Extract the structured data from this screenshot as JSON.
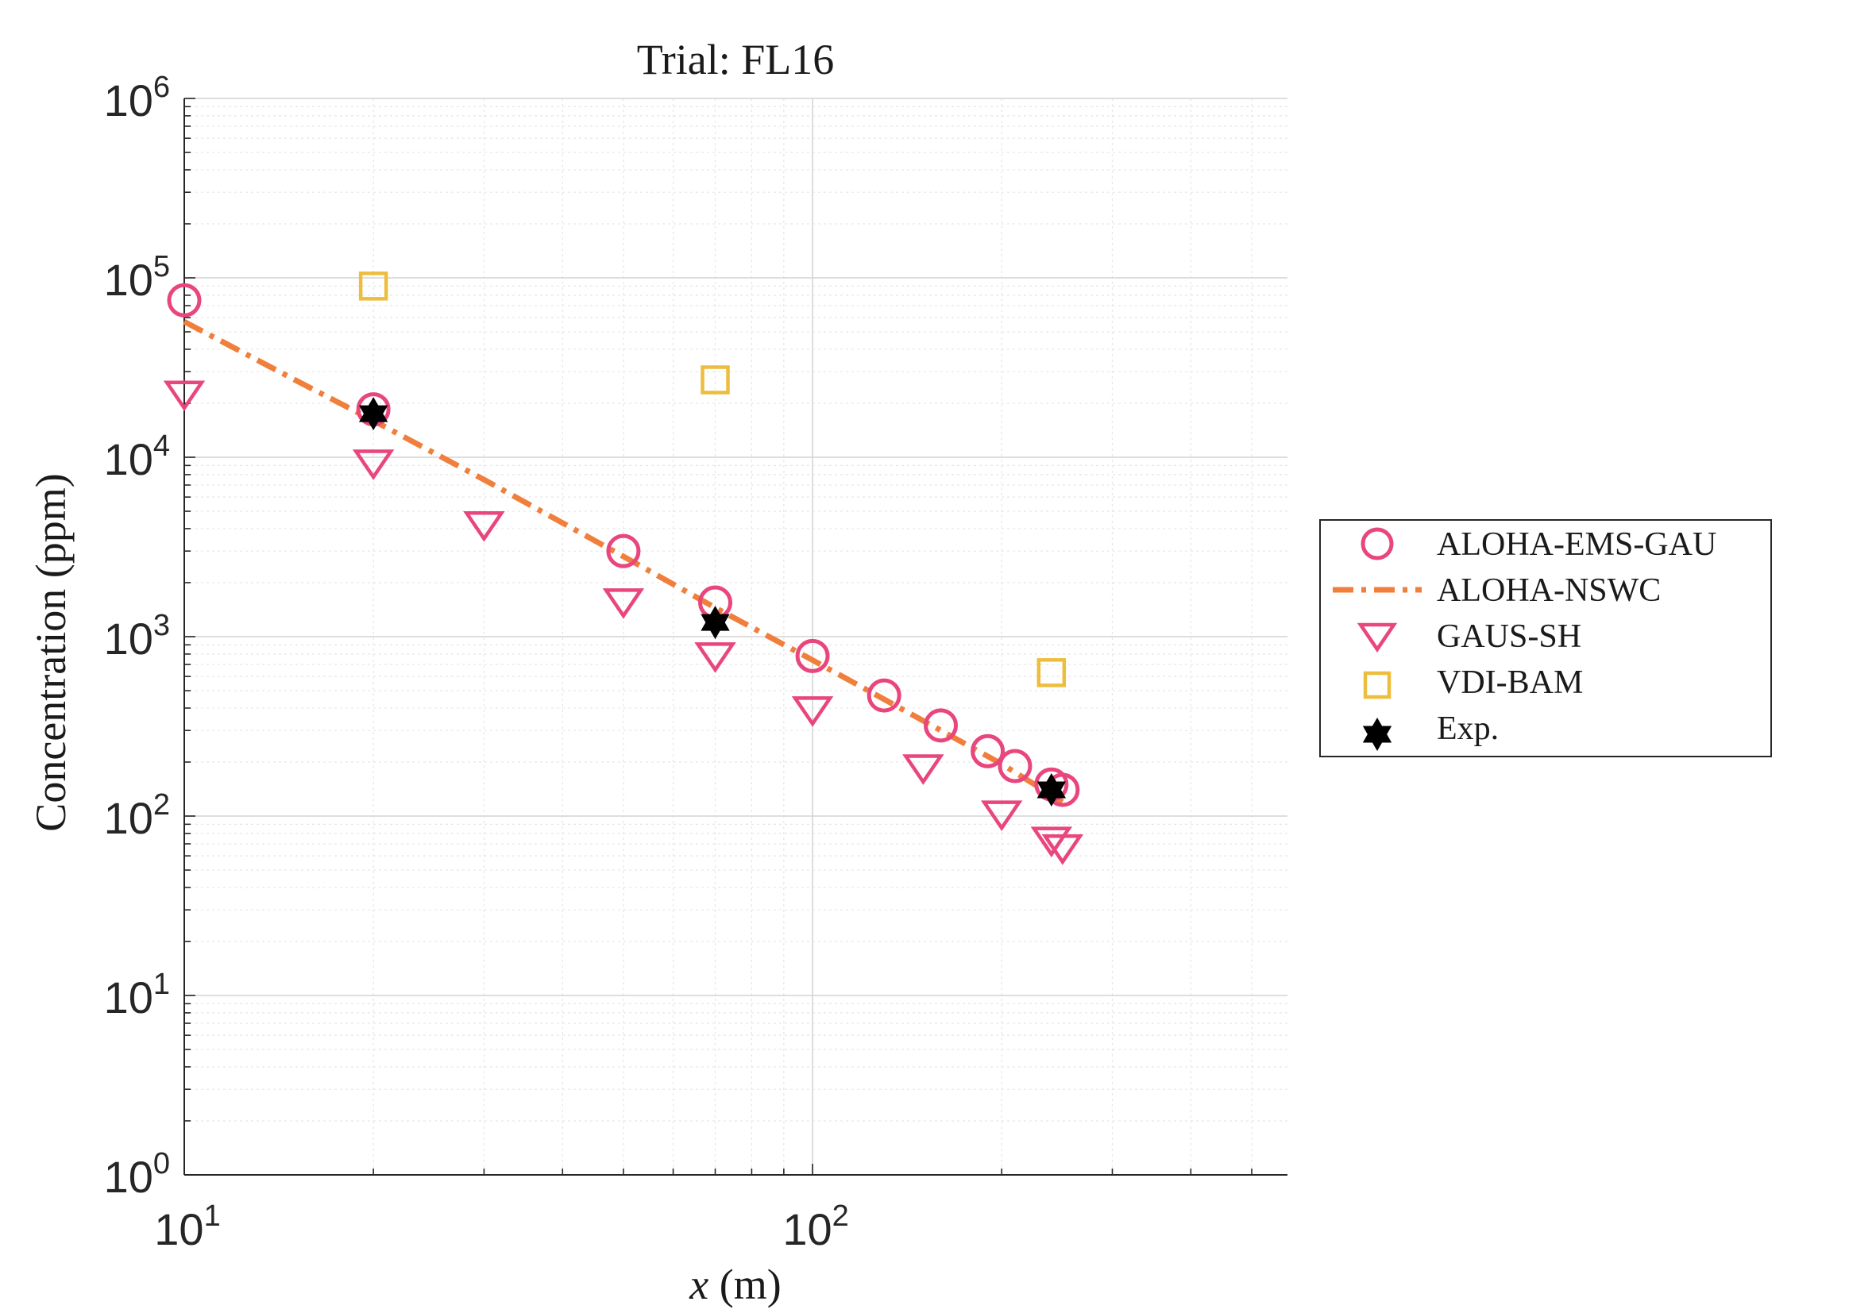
{
  "chart_data": {
    "type": "scatter",
    "title": "Trial: FL16",
    "xlabel": {
      "var": "x",
      "unit": " (m)"
    },
    "ylabel": "Concentration (ppm)",
    "xscale": "log",
    "yscale": "log",
    "xlim": [
      10,
      570
    ],
    "ylim": [
      1,
      1000000
    ],
    "grid": true,
    "minor_grid": true,
    "legend_position": "outside-right",
    "x_tick_labels": [
      {
        "value": 10,
        "base": "10",
        "exp": "1"
      },
      {
        "value": 100,
        "base": "10",
        "exp": "2"
      }
    ],
    "y_tick_labels": [
      {
        "value": 1,
        "base": "10",
        "exp": "0"
      },
      {
        "value": 10,
        "base": "10",
        "exp": "1"
      },
      {
        "value": 100,
        "base": "10",
        "exp": "2"
      },
      {
        "value": 1000,
        "base": "10",
        "exp": "3"
      },
      {
        "value": 10000,
        "base": "10",
        "exp": "4"
      },
      {
        "value": 100000,
        "base": "10",
        "exp": "5"
      },
      {
        "value": 1000000,
        "base": "10",
        "exp": "6"
      }
    ],
    "series": [
      {
        "name": "ALOHA-EMS-GAU",
        "marker": "circle",
        "color": "#E8467C",
        "points": [
          [
            10,
            75000
          ],
          [
            20,
            18500
          ],
          [
            50,
            3000
          ],
          [
            70,
            1550
          ],
          [
            100,
            780
          ],
          [
            130,
            470
          ],
          [
            160,
            320
          ],
          [
            190,
            230
          ],
          [
            210,
            190
          ],
          [
            240,
            150
          ],
          [
            250,
            140
          ]
        ]
      },
      {
        "name": "ALOHA-NSWC",
        "marker": "line",
        "style": "dash-dot",
        "color": "#F07F3C",
        "points": [
          [
            10,
            57000
          ],
          [
            15,
            27000
          ],
          [
            20,
            16000
          ],
          [
            30,
            7500
          ],
          [
            50,
            2800
          ],
          [
            70,
            1450
          ],
          [
            100,
            740
          ],
          [
            150,
            340
          ],
          [
            200,
            195
          ],
          [
            250,
            120
          ]
        ]
      },
      {
        "name": "GAUS-SH",
        "marker": "triangle-down",
        "color": "#E8467C",
        "points": [
          [
            10,
            23000
          ],
          [
            20,
            9500
          ],
          [
            30,
            4300
          ],
          [
            50,
            1600
          ],
          [
            70,
            800
          ],
          [
            100,
            400
          ],
          [
            150,
            190
          ],
          [
            200,
            105
          ],
          [
            240,
            75
          ],
          [
            250,
            68
          ]
        ]
      },
      {
        "name": "VDI-BAM",
        "marker": "square",
        "color": "#EDBD3E",
        "points": [
          [
            20,
            90000
          ],
          [
            70,
            27000
          ],
          [
            240,
            630
          ]
        ]
      },
      {
        "name": "Exp.",
        "marker": "hexagram",
        "color": "#000000",
        "points": [
          [
            20,
            17500
          ],
          [
            70,
            1200
          ],
          [
            240,
            140
          ]
        ]
      }
    ]
  }
}
